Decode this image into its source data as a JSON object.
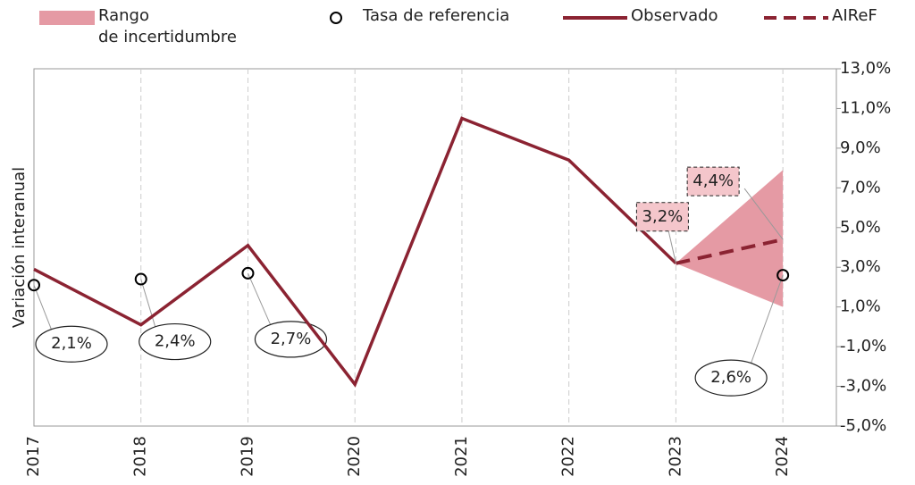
{
  "chart_data": {
    "type": "line",
    "y_axis_label": "Variación interanual",
    "xlim": [
      2017,
      2024.5
    ],
    "xticks": [
      2017,
      2018,
      2019,
      2020,
      2021,
      2022,
      2023,
      2024
    ],
    "ylim": [
      -5,
      13
    ],
    "yticks": [
      {
        "value": 13,
        "label": "13,0%"
      },
      {
        "value": 11,
        "label": "11,0%"
      },
      {
        "value": 9,
        "label": "9,0%"
      },
      {
        "value": 7,
        "label": "7,0%"
      },
      {
        "value": 5,
        "label": "5,0%"
      },
      {
        "value": 3,
        "label": "3,0%"
      },
      {
        "value": 1,
        "label": "1,0%"
      },
      {
        "value": -1,
        "label": "-1,0%"
      },
      {
        "value": -3,
        "label": "-3,0%"
      },
      {
        "value": -5,
        "label": "-5,0%"
      }
    ],
    "grid": true,
    "series": [
      {
        "name": "Rango\nde incertidumbre",
        "style": "range",
        "color": "#e59aa4",
        "x": [
          2023,
          2024
        ],
        "low": [
          3.2,
          1.0
        ],
        "high": [
          3.2,
          7.9
        ]
      },
      {
        "name": "Tasa de referencia",
        "style": "scatter",
        "color": "#000000",
        "x": [
          2017,
          2018,
          2019,
          2024
        ],
        "values": [
          2.1,
          2.4,
          2.7,
          2.6
        ],
        "value_labels": [
          "2,1%",
          "2,4%",
          "2,7%",
          "2,6%"
        ]
      },
      {
        "name": "Observado",
        "style": "line",
        "color": "#8b2332",
        "x": [
          2017,
          2018,
          2019,
          2020,
          2021,
          2022,
          2023
        ],
        "values": [
          2.9,
          0.1,
          4.1,
          -2.9,
          10.5,
          8.4,
          3.2
        ]
      },
      {
        "name": "AIReF",
        "style": "dashed",
        "color": "#8b2332",
        "x": [
          2023,
          2024
        ],
        "values": [
          3.2,
          4.4
        ],
        "value_labels": [
          "3,2%",
          "4,4%"
        ]
      }
    ]
  }
}
